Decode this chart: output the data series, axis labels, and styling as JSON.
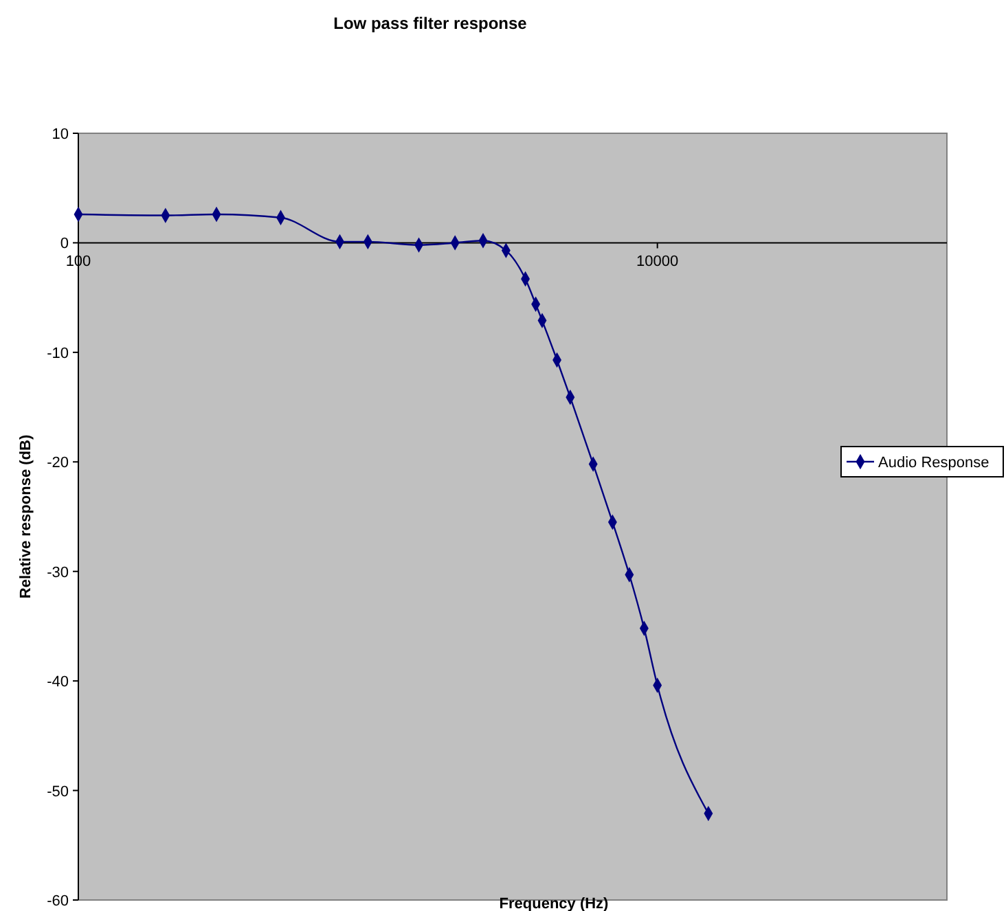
{
  "chart_data": {
    "type": "line",
    "title": "Low pass filter response",
    "xlabel": "Frequency (Hz)",
    "ylabel": "Relative response (dB)",
    "x": [
      100,
      200,
      300,
      500,
      800,
      1000,
      1500,
      2000,
      2500,
      3000,
      3500,
      3800,
      4000,
      4500,
      5000,
      6000,
      7000,
      8000,
      9000,
      10000,
      15000
    ],
    "series": [
      {
        "name": "Audio Response",
        "color": "#000080",
        "values": [
          2.6,
          2.5,
          2.6,
          2.3,
          0.1,
          0.1,
          -0.2,
          0,
          0.2,
          -0.7,
          -3.3,
          -5.6,
          -7.1,
          -10.7,
          -14.1,
          -20.2,
          -25.5,
          -30.3,
          -35.2,
          -40.4,
          -52.1
        ]
      }
    ],
    "log": "x",
    "xlim": [
      100,
      100000
    ],
    "xticks": [
      100,
      10000
    ],
    "ylim": [
      -60,
      10
    ],
    "yticks": [
      -60,
      -50,
      -40,
      -30,
      -20,
      -10,
      0,
      10
    ],
    "marker": "diamond",
    "line_style": "solid",
    "legend": "right"
  }
}
